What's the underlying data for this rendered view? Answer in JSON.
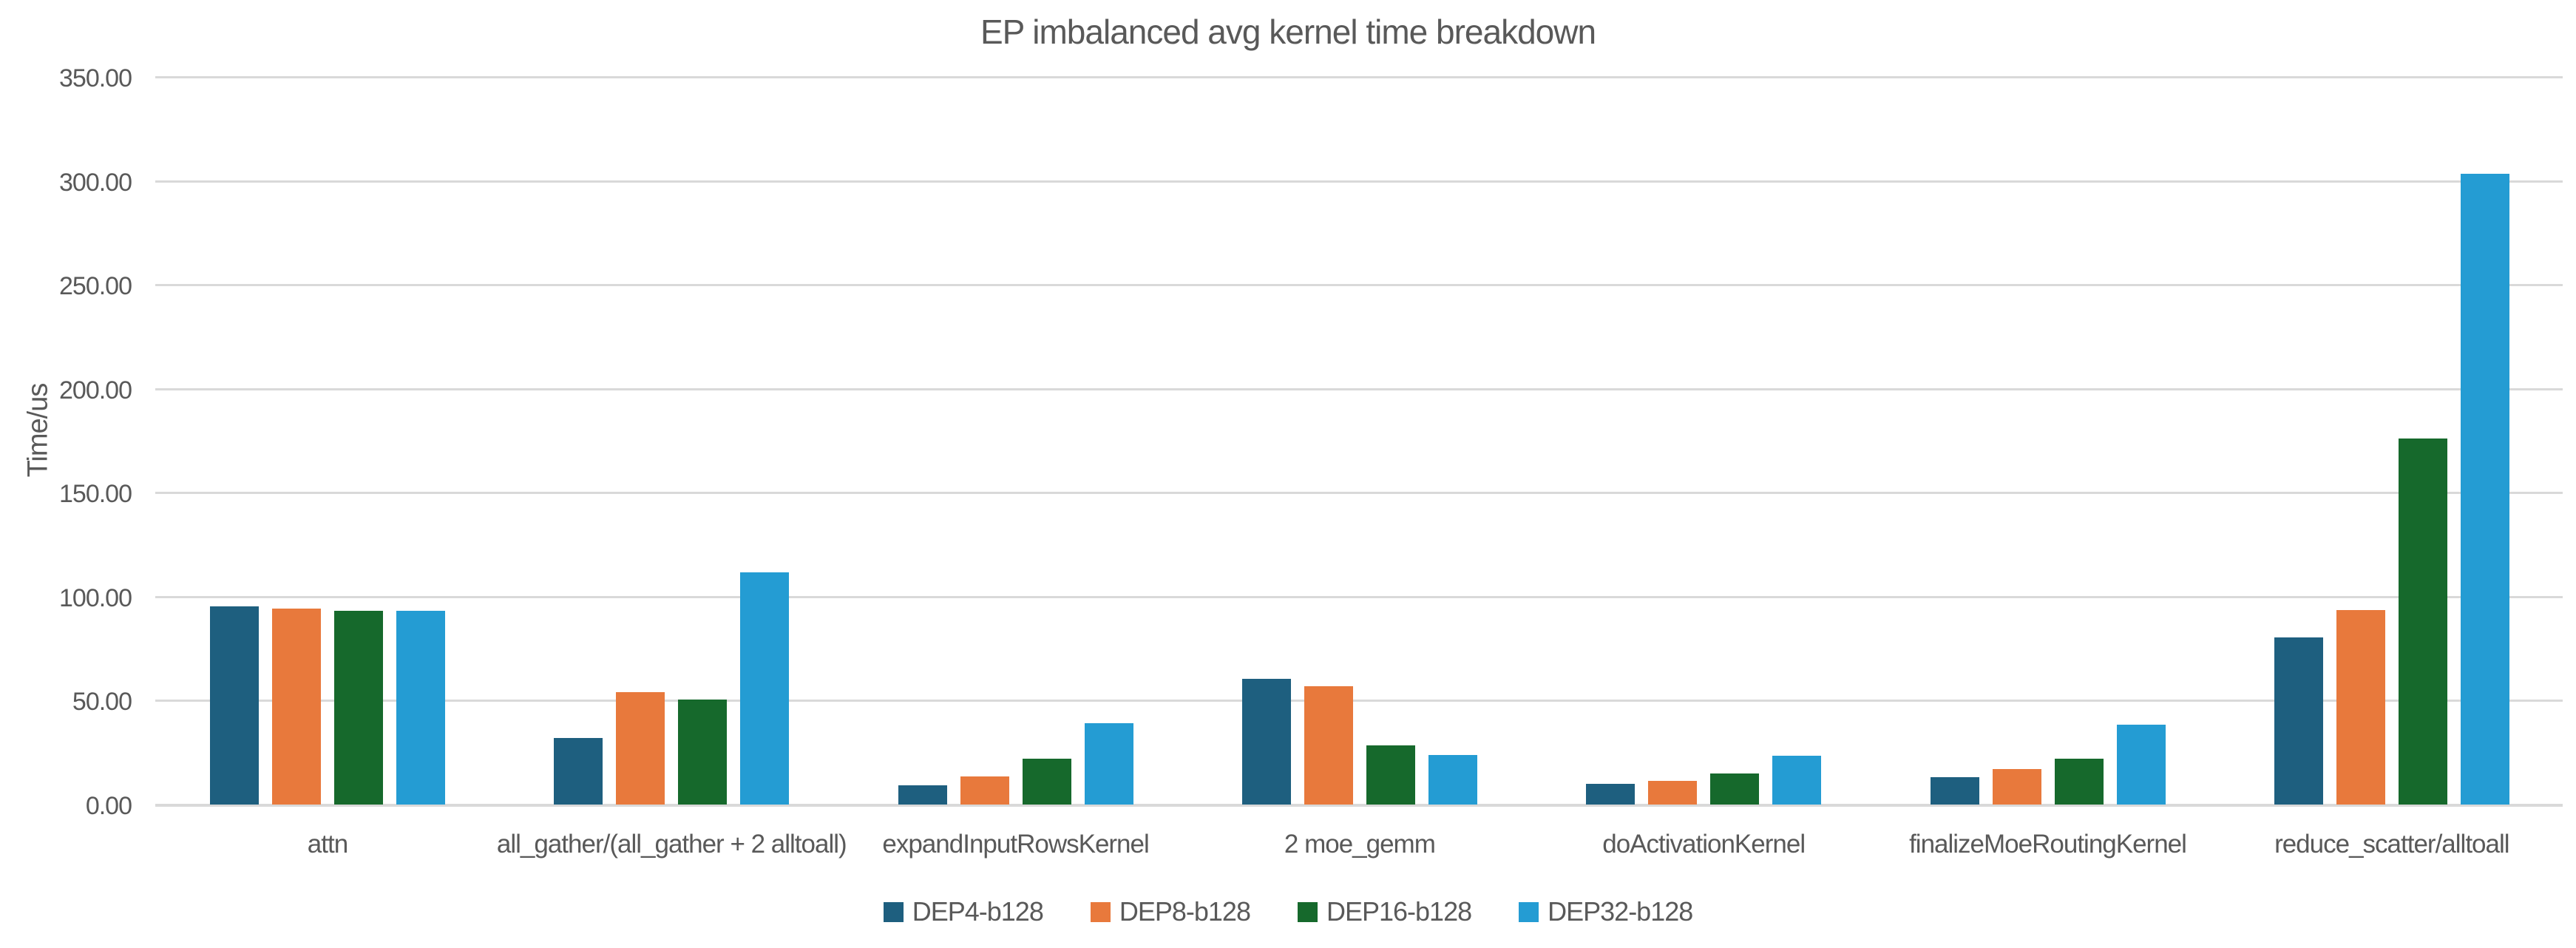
{
  "chart_data": {
    "type": "bar",
    "title": "EP imbalanced avg kernel time breakdown",
    "xlabel": "",
    "ylabel": "Time/us",
    "ylim": [
      0,
      350
    ],
    "ytick_step": 50,
    "ytick_decimals": 2,
    "grid": true,
    "legend_position": "bottom",
    "background_color": "#ffffff",
    "text_color": "#595959",
    "gridline_color": "#d9d9d9",
    "categories": [
      "attn",
      "all_gather/(all_gather + 2 alltoall)",
      "expandInputRowsKernel",
      "2 moe_gemm",
      "doActivationKernel",
      "finalizeMoeRoutingKernel",
      "reduce_scatter/alltoall"
    ],
    "series": [
      {
        "name": "DEP4-b128",
        "color": "#1e5f7f",
        "values": [
          95.5,
          32.0,
          9.3,
          60.5,
          10.0,
          13.0,
          80.5
        ]
      },
      {
        "name": "DEP8-b128",
        "color": "#e8793c",
        "values": [
          94.2,
          54.0,
          13.5,
          57.0,
          11.5,
          17.0,
          93.5
        ]
      },
      {
        "name": "DEP16-b128",
        "color": "#16692c",
        "values": [
          93.2,
          50.5,
          22.0,
          28.5,
          15.0,
          22.0,
          176.0
        ]
      },
      {
        "name": "DEP32-b128",
        "color": "#249cd3",
        "values": [
          93.2,
          111.8,
          39.0,
          24.0,
          23.5,
          38.5,
          303.5
        ]
      }
    ]
  }
}
